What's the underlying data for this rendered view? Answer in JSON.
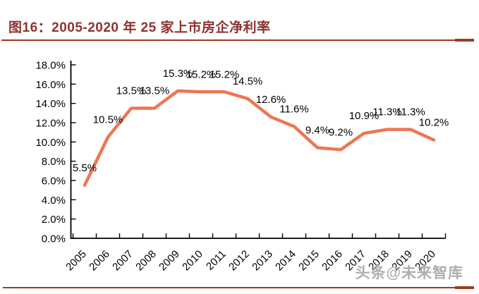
{
  "header": {
    "title": "图16：2005-2020 年 25 家上市房企净利率",
    "title_color": "#8B3431",
    "rule_color": "#9E3B22"
  },
  "watermark": {
    "text": "头条@未来智库"
  },
  "chart_data": {
    "type": "line",
    "title": "图16：2005-2020 年 25 家上市房企净利率",
    "categories": [
      "2005",
      "2006",
      "2007",
      "2008",
      "2009",
      "2010",
      "2011",
      "2012",
      "2013",
      "2014",
      "2015",
      "2016",
      "2017",
      "2018",
      "2019",
      "2020"
    ],
    "values": [
      5.5,
      10.5,
      13.5,
      13.5,
      15.3,
      15.2,
      15.2,
      14.5,
      12.6,
      11.6,
      9.4,
      9.2,
      10.9,
      11.3,
      11.3,
      10.2
    ],
    "point_labels": [
      "5.5%",
      "10.5%",
      "13.5%",
      "13.5%",
      "15.3%",
      "15.2%",
      "15.2%",
      "14.5%",
      "12.6%",
      "11.6%",
      "9.4%",
      "9.2%",
      "10.9%",
      "11.3%",
      "11.3%",
      "10.2%"
    ],
    "xlabel": "",
    "ylabel": "",
    "ylim": [
      0,
      18
    ],
    "ytick_step": 2,
    "ytick_labels": [
      "0.0%",
      "2.0%",
      "4.0%",
      "6.0%",
      "8.0%",
      "10.0%",
      "12.0%",
      "14.0%",
      "16.0%",
      "18.0%"
    ],
    "grid": false,
    "legend": "none",
    "line_color": "#EE7553",
    "axis_color": "#000000",
    "label_color": "#000000"
  }
}
